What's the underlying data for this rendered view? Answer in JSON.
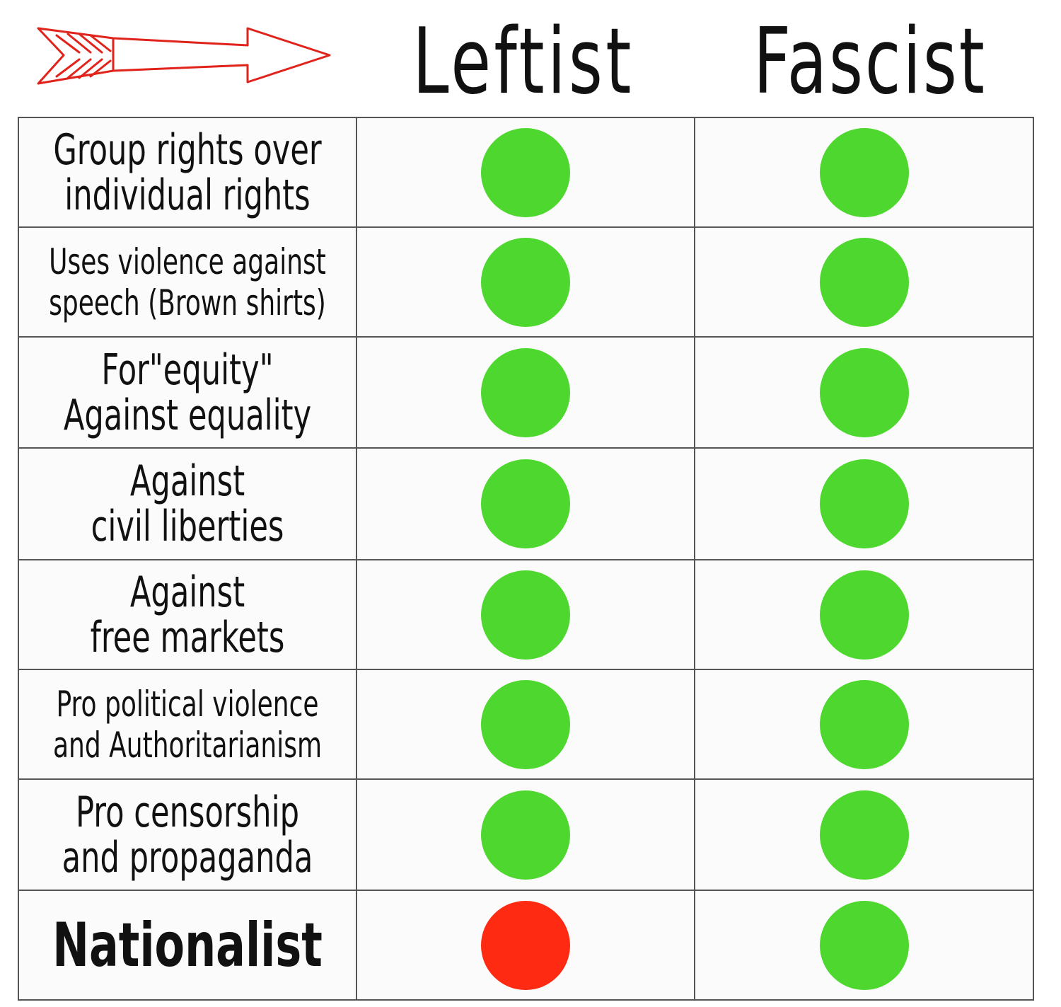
{
  "header": {
    "arrow_icon": "red-arrow-icon",
    "arrow_color": "#e0231b",
    "columns": [
      "Leftist",
      "Fascist"
    ]
  },
  "colors": {
    "yes": "#4ed82f",
    "no": "#ff2a12"
  },
  "rows": [
    {
      "label": "Group rights over\nindividual rights",
      "size": "normal",
      "leftist": "yes",
      "fascist": "yes"
    },
    {
      "label": "Uses violence against\nspeech (Brown shirts)",
      "size": "small",
      "leftist": "yes",
      "fascist": "yes"
    },
    {
      "label": "For\"equity\"\nAgainst equality",
      "size": "normal",
      "leftist": "yes",
      "fascist": "yes"
    },
    {
      "label": "Against\ncivil liberties",
      "size": "normal",
      "leftist": "yes",
      "fascist": "yes"
    },
    {
      "label": "Against\nfree markets",
      "size": "normal",
      "leftist": "yes",
      "fascist": "yes"
    },
    {
      "label": "Pro political violence\nand Authoritarianism",
      "size": "small",
      "leftist": "yes",
      "fascist": "yes"
    },
    {
      "label": "Pro censorship\nand propaganda",
      "size": "normal",
      "leftist": "yes",
      "fascist": "yes"
    },
    {
      "label": "Nationalist",
      "size": "big",
      "leftist": "no",
      "fascist": "yes"
    }
  ]
}
